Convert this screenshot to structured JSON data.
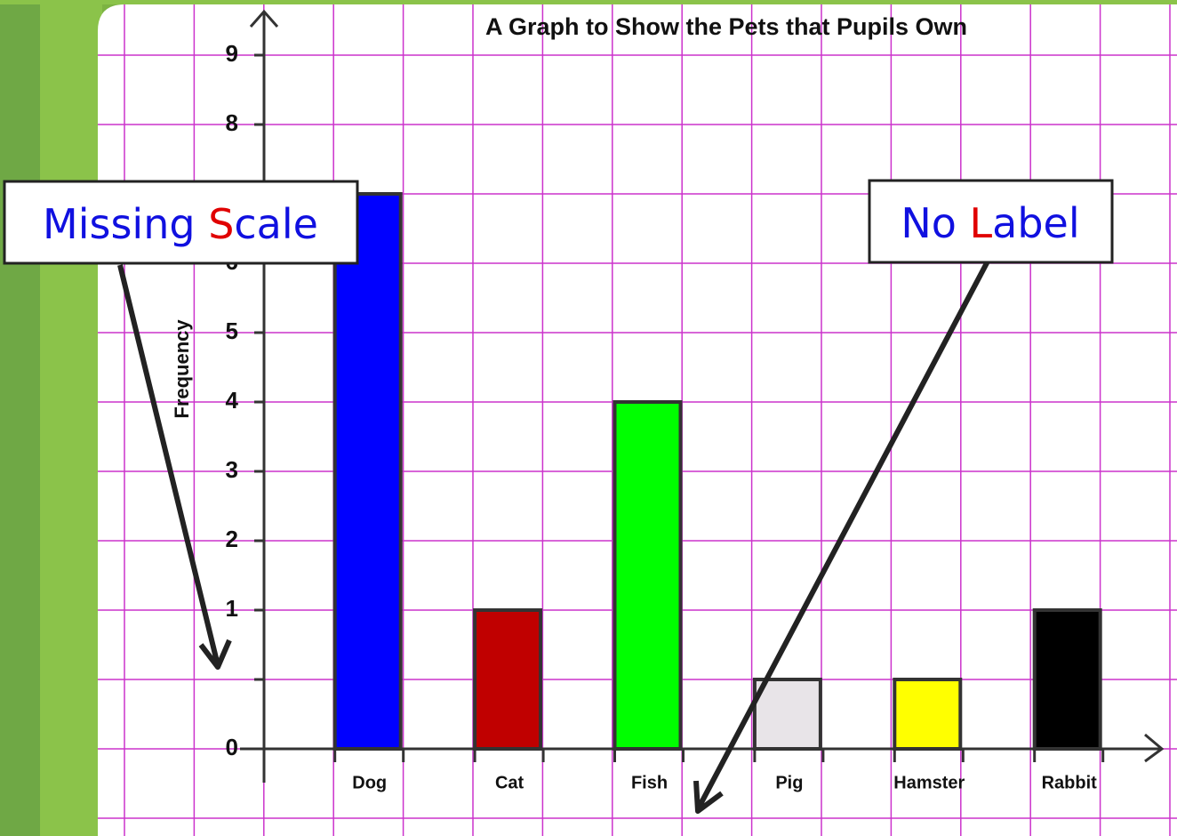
{
  "chart_data": {
    "type": "bar",
    "title": "A Graph to Show the Pets that Pupils Own",
    "y_label": "Frequency",
    "categories": [
      "Dog",
      "Cat",
      "Fish",
      "Pig",
      "Hamster",
      "Rabbit"
    ],
    "values": [
      7,
      1,
      4,
      0.5,
      0.5,
      1
    ],
    "colors": [
      "#0000ff",
      "#c00000",
      "#00ff00",
      "#e8e4e8",
      "#ffff00",
      "#000000"
    ],
    "ylim": [
      0,
      9
    ],
    "yticks": [
      0,
      {
        "value": 0.5,
        "label": null
      },
      1,
      2,
      3,
      4,
      5,
      6,
      7,
      8,
      9
    ]
  },
  "annotations": [
    {
      "parts": [
        "Missing ",
        "S",
        "cale"
      ]
    },
    {
      "parts": [
        "No ",
        "L",
        "abel"
      ]
    }
  ]
}
